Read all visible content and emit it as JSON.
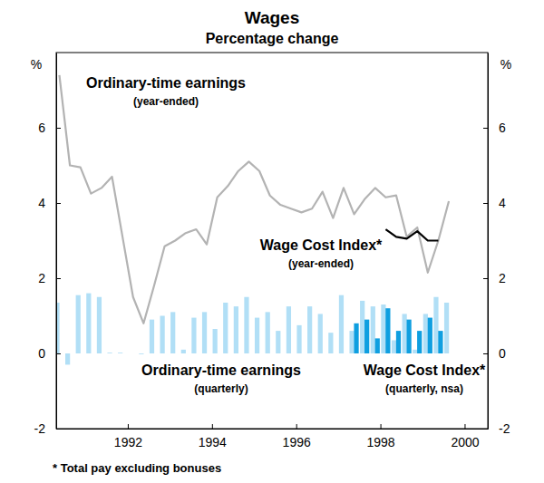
{
  "chart_data": {
    "type": "line",
    "title": "Wages",
    "subtitle": "Percentage change",
    "ylabel": "%",
    "footnote": "* Total pay excluding bonuses",
    "xlim": [
      1990.3,
      2000.55
    ],
    "xticks": [
      1992,
      1994,
      1996,
      1998,
      2000
    ],
    "ylim": [
      -2,
      8
    ],
    "yticks": [
      -2,
      0,
      2,
      4,
      6
    ],
    "grid": false,
    "series": [
      {
        "name": "Ordinary-time earnings",
        "note": "(year-ended)",
        "type": "line",
        "color": "#b3b3b3",
        "x": [
          1990.375,
          1990.625,
          1990.875,
          1991.125,
          1991.375,
          1991.625,
          1991.875,
          1992.125,
          1992.375,
          1992.625,
          1992.875,
          1993.125,
          1993.375,
          1993.625,
          1993.875,
          1994.125,
          1994.375,
          1994.625,
          1994.875,
          1995.125,
          1995.375,
          1995.625,
          1995.875,
          1996.125,
          1996.375,
          1996.625,
          1996.875,
          1997.125,
          1997.375,
          1997.625,
          1997.875,
          1998.125,
          1998.375,
          1998.625,
          1998.875,
          1999.125,
          1999.375,
          1999.625
        ],
        "values": [
          7.4,
          5.0,
          4.95,
          4.25,
          4.4,
          4.7,
          3.1,
          1.5,
          0.8,
          1.8,
          2.85,
          3.0,
          3.2,
          3.3,
          2.9,
          4.15,
          4.45,
          4.85,
          5.1,
          4.85,
          4.2,
          3.95,
          3.85,
          3.75,
          3.85,
          4.3,
          3.6,
          4.4,
          3.7,
          4.1,
          4.4,
          4.15,
          4.2,
          3.1,
          3.35,
          2.15,
          3.0,
          4.05
        ]
      },
      {
        "name": "Ordinary-time earnings",
        "note": "(quarterly)",
        "type": "bar",
        "color": "#b1dff6",
        "x": [
          1990.375,
          1990.625,
          1990.875,
          1991.125,
          1991.375,
          1991.625,
          1991.875,
          1992.125,
          1992.375,
          1992.625,
          1992.875,
          1993.125,
          1993.375,
          1993.625,
          1993.875,
          1994.125,
          1994.375,
          1994.625,
          1994.875,
          1995.125,
          1995.375,
          1995.625,
          1995.875,
          1996.125,
          1996.375,
          1996.625,
          1996.875,
          1997.125,
          1997.375,
          1997.625,
          1997.875,
          1998.125,
          1998.375,
          1998.625,
          1998.875,
          1999.125,
          1999.375,
          1999.625
        ],
        "values": [
          1.35,
          -0.3,
          1.55,
          1.6,
          1.5,
          0.02,
          0.02,
          0.0,
          -0.02,
          0.9,
          1.0,
          1.1,
          0.1,
          0.95,
          1.1,
          0.65,
          1.35,
          1.25,
          1.5,
          0.95,
          1.1,
          0.6,
          1.25,
          0.75,
          1.25,
          1.05,
          0.55,
          1.55,
          0.6,
          1.4,
          1.25,
          1.3,
          0.35,
          1.05,
          0.1,
          1.05,
          1.5,
          1.35
        ]
      },
      {
        "name": "Wage Cost Index*",
        "note": "(quarterly, nsa)",
        "type": "bar",
        "color": "#0f9fe0",
        "x": [
          1997.375,
          1997.625,
          1997.875,
          1998.125,
          1998.375,
          1998.625,
          1998.875,
          1999.125,
          1999.375
        ],
        "values": [
          0.8,
          0.9,
          0.4,
          1.2,
          0.6,
          0.9,
          0.6,
          0.95,
          0.6
        ]
      },
      {
        "name": "Wage Cost Index*",
        "note": "(year-ended)",
        "type": "line",
        "color": "#000000",
        "x": [
          1998.125,
          1998.375,
          1998.625,
          1998.875,
          1999.125,
          1999.375
        ],
        "values": [
          3.3,
          3.1,
          3.05,
          3.25,
          3.0,
          3.0
        ]
      }
    ]
  }
}
